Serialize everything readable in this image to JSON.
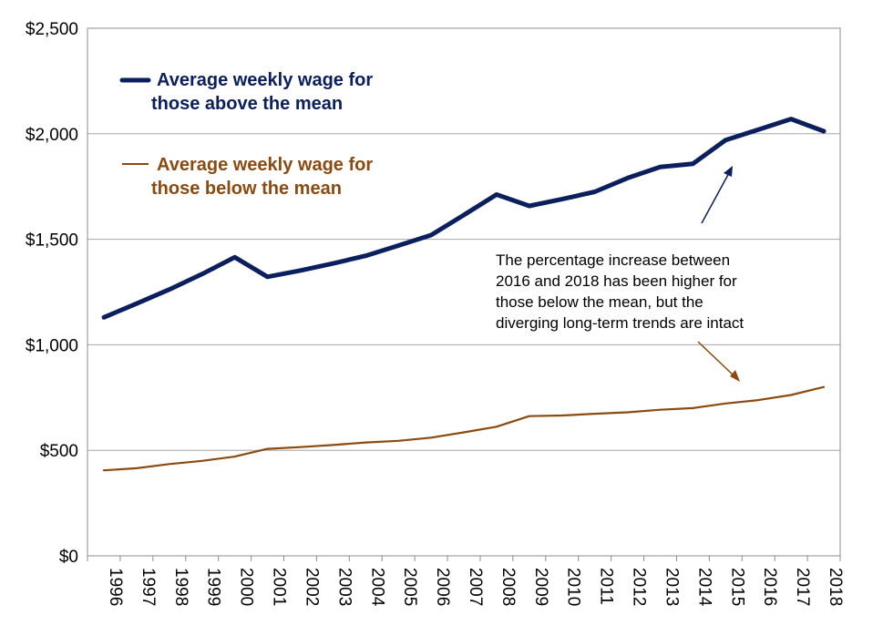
{
  "chart_data": {
    "type": "line",
    "title": "",
    "xlabel": "",
    "ylabel": "",
    "ylim": [
      0,
      2500
    ],
    "yticks": [
      0,
      500,
      1000,
      1500,
      2000,
      2500
    ],
    "ytick_labels": [
      "$0",
      "$500",
      "$1,000",
      "$1,500",
      "$2,000",
      "$2,500"
    ],
    "grid": true,
    "categories": [
      "1996",
      "1997",
      "1998",
      "1999",
      "2000",
      "2001",
      "2002",
      "2003",
      "2004",
      "2005",
      "2006",
      "2007",
      "2008",
      "2009",
      "2010",
      "2011",
      "2012",
      "2013",
      "2014",
      "2015",
      "2016",
      "2017",
      "2018"
    ],
    "series": [
      {
        "name": "Average weekly wage for those above the mean",
        "legend_line1": "Average weekly wage for",
        "legend_line2": "those above the mean",
        "color": "#0b1f5e",
        "values": [
          1130,
          1195,
          1262,
          1335,
          1415,
          1322,
          1352,
          1385,
          1422,
          1470,
          1520,
          1615,
          1712,
          1658,
          1690,
          1725,
          1790,
          1843,
          1858,
          1970,
          2020,
          2070,
          2012
        ]
      },
      {
        "name": "Average weekly wage for those below the mean",
        "legend_line1": "Average weekly wage for",
        "legend_line2": "those below the mean",
        "color": "#8b4a10",
        "values": [
          405,
          415,
          435,
          450,
          470,
          507,
          515,
          525,
          537,
          545,
          560,
          585,
          612,
          662,
          665,
          673,
          680,
          692,
          700,
          722,
          738,
          762,
          800
        ]
      }
    ],
    "annotation": {
      "lines": [
        "The percentage increase between",
        "2016 and 2018 has been higher for",
        "those below the mean, but the",
        "diverging long-term trends are intact"
      ],
      "arrow_up_color": "#0b1f5e",
      "arrow_down_color": "#8b4a10"
    }
  }
}
